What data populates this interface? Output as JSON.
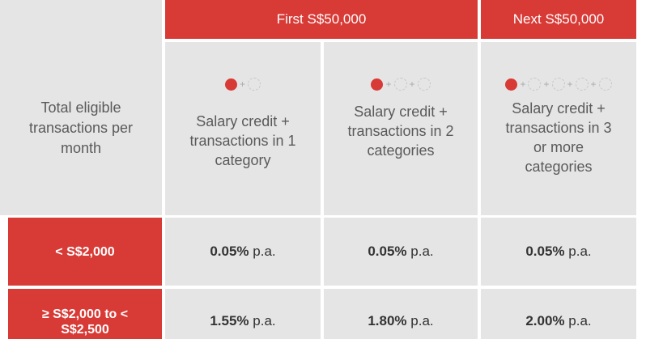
{
  "header": {
    "first_tier": "First S$50,000",
    "next_tier": "Next S$50,000"
  },
  "row_label_header": "Total eligible transactions per month",
  "categories": [
    {
      "description": "Salary credit + transactions in 1 category",
      "empty_circles": 1
    },
    {
      "description": "Salary credit + transactions in 2 categories",
      "empty_circles": 2
    },
    {
      "description": "Salary credit + transactions in 3 or more categories",
      "empty_circles": 4
    }
  ],
  "icons": {
    "filled": "red-dot-icon",
    "empty": "empty-circle-icon",
    "plus": "+"
  },
  "rows": [
    {
      "tier": "< S$2,000",
      "rates": [
        {
          "value": "0.05%",
          "suffix": " p.a."
        },
        {
          "value": "0.05%",
          "suffix": " p.a."
        },
        {
          "value": "0.05%",
          "suffix": " p.a."
        }
      ]
    },
    {
      "tier": "≥ S$2,000 to < S$2,500",
      "rates": [
        {
          "value": "1.55%",
          "suffix": " p.a."
        },
        {
          "value": "1.80%",
          "suffix": " p.a."
        },
        {
          "value": "2.00%",
          "suffix": " p.a."
        }
      ]
    }
  ],
  "colors": {
    "accent": "#d83a36",
    "cell_bg": "#e5e5e5",
    "text": "#5a5a5a"
  }
}
